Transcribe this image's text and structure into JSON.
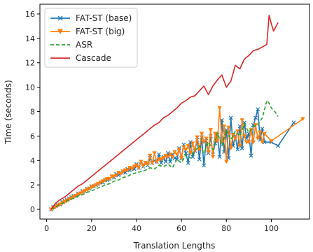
{
  "chart_data": {
    "type": "line",
    "xlabel": "Translation Lengths",
    "ylabel": "Time (seconds)",
    "xlim": [
      -3,
      117
    ],
    "ylim": [
      -0.8,
      16.8
    ],
    "xticks": [
      0,
      20,
      40,
      60,
      80,
      100
    ],
    "yticks": [
      0,
      2,
      4,
      6,
      8,
      10,
      12,
      14,
      16
    ],
    "grid": false,
    "legend_position": "top-left",
    "series": [
      {
        "name": "FAT-ST (base)",
        "color": "#1f77b4",
        "marker": "x",
        "x": [
          2,
          3,
          4,
          5,
          6,
          7,
          8,
          9,
          10,
          11,
          12,
          13,
          14,
          15,
          16,
          17,
          18,
          19,
          20,
          21,
          22,
          23,
          24,
          25,
          26,
          27,
          28,
          29,
          30,
          31,
          32,
          33,
          34,
          35,
          36,
          37,
          38,
          39,
          40,
          41,
          42,
          43,
          44,
          45,
          46,
          47,
          48,
          49,
          50,
          51,
          52,
          53,
          54,
          55,
          56,
          57,
          58,
          59,
          60,
          61,
          62,
          63,
          64,
          65,
          66,
          67,
          68,
          69,
          70,
          71,
          72,
          73,
          74,
          75,
          76,
          77,
          78,
          79,
          80,
          81,
          82,
          83,
          84,
          85,
          86,
          87,
          88,
          89,
          90,
          91,
          92,
          93,
          94,
          95,
          96,
          97,
          100,
          103,
          110
        ],
        "y": [
          0.0,
          0.2,
          0.3,
          0.4,
          0.4,
          0.6,
          0.7,
          0.8,
          0.9,
          1.0,
          1.1,
          1.1,
          1.3,
          1.3,
          1.5,
          1.5,
          1.7,
          1.7,
          1.9,
          1.9,
          2.0,
          2.1,
          2.2,
          2.2,
          2.4,
          2.4,
          2.5,
          2.7,
          2.6,
          2.9,
          2.8,
          3.0,
          3.1,
          3.0,
          3.3,
          3.2,
          3.4,
          3.3,
          3.7,
          3.4,
          3.9,
          3.5,
          3.8,
          3.6,
          4.2,
          3.8,
          4.0,
          3.9,
          4.5,
          3.8,
          4.3,
          3.9,
          4.6,
          3.9,
          4.5,
          4.2,
          4.1,
          5.0,
          4.2,
          5.3,
          4.6,
          3.8,
          5.5,
          4.3,
          4.8,
          5.7,
          4.1,
          5.9,
          3.6,
          5.6,
          4.6,
          6.0,
          4.5,
          5.4,
          6.1,
          4.3,
          7.3,
          4.7,
          6.5,
          4.2,
          7.5,
          5.2,
          6.0,
          4.9,
          6.8,
          5.0,
          7.1,
          5.8,
          6.2,
          4.4,
          6.9,
          7.5,
          8.2,
          5.7,
          6.6,
          5.5,
          5.5,
          5.2,
          7.1
        ]
      },
      {
        "name": "FAT-ST (big)",
        "color": "#ff7f0e",
        "marker": "triangle-down",
        "x": [
          2,
          3,
          4,
          5,
          6,
          7,
          8,
          9,
          10,
          11,
          12,
          13,
          14,
          15,
          16,
          17,
          18,
          19,
          20,
          21,
          22,
          23,
          24,
          25,
          26,
          27,
          28,
          29,
          30,
          31,
          32,
          33,
          34,
          35,
          36,
          37,
          38,
          39,
          40,
          41,
          42,
          43,
          44,
          45,
          46,
          47,
          48,
          49,
          50,
          51,
          52,
          53,
          54,
          55,
          56,
          57,
          58,
          59,
          60,
          61,
          62,
          63,
          64,
          65,
          66,
          67,
          68,
          69,
          70,
          71,
          72,
          73,
          74,
          75,
          76,
          77,
          78,
          79,
          80,
          81,
          82,
          83,
          84,
          85,
          86,
          87,
          88,
          89,
          90,
          91,
          92,
          93,
          94,
          95,
          96,
          97,
          100,
          114
        ],
        "y": [
          0.0,
          0.1,
          0.2,
          0.3,
          0.4,
          0.5,
          0.6,
          0.7,
          0.8,
          0.9,
          1.0,
          1.1,
          1.2,
          1.3,
          1.4,
          1.5,
          1.6,
          1.7,
          1.8,
          1.9,
          2.0,
          2.1,
          2.2,
          2.3,
          2.4,
          2.5,
          2.5,
          2.7,
          2.7,
          2.8,
          3.0,
          2.9,
          3.1,
          3.2,
          3.2,
          3.4,
          3.3,
          3.5,
          3.6,
          3.4,
          3.9,
          3.6,
          3.8,
          3.7,
          4.4,
          3.8,
          4.6,
          3.9,
          4.1,
          4.1,
          4.2,
          4.4,
          4.3,
          4.5,
          4.3,
          4.7,
          4.5,
          4.9,
          4.2,
          5.1,
          4.9,
          5.2,
          4.6,
          5.4,
          4.8,
          5.9,
          4.9,
          6.2,
          5.5,
          5.8,
          4.7,
          6.5,
          4.3,
          6.2,
          5.6,
          8.3,
          5.5,
          6.8,
          3.9,
          6.7,
          5.0,
          6.1,
          5.8,
          6.4,
          5.2,
          7.3,
          6.0,
          5.5,
          5.5,
          6.5,
          5.5,
          6.9,
          5.8,
          6.3,
          5.5,
          6.2,
          5.6,
          7.4
        ]
      },
      {
        "name": "ASR",
        "color": "#2ca02c",
        "dash": "5,3",
        "x": [
          2,
          4,
          6,
          8,
          10,
          12,
          14,
          16,
          18,
          20,
          22,
          24,
          26,
          28,
          30,
          32,
          34,
          36,
          38,
          40,
          42,
          44,
          46,
          48,
          50,
          52,
          54,
          56,
          58,
          60,
          62,
          64,
          66,
          68,
          70,
          72,
          74,
          76,
          78,
          80,
          82,
          84,
          86,
          88,
          90,
          92,
          94,
          96,
          98,
          99,
          100,
          102,
          103
        ],
        "y": [
          0.0,
          0.2,
          0.4,
          0.6,
          0.8,
          0.9,
          1.1,
          1.2,
          1.4,
          1.5,
          1.7,
          1.8,
          2.0,
          2.1,
          2.3,
          2.4,
          2.6,
          2.7,
          2.9,
          3.0,
          3.1,
          3.2,
          3.4,
          3.3,
          3.6,
          3.5,
          3.7,
          3.4,
          4.1,
          3.8,
          4.5,
          4.2,
          4.8,
          5.2,
          4.6,
          5.5,
          4.9,
          6.3,
          5.2,
          6.5,
          5.7,
          6.4,
          6.0,
          7.0,
          6.3,
          6.8,
          6.9,
          7.5,
          8.9,
          8.7,
          8.3,
          7.9,
          7.6
        ]
      },
      {
        "name": "Cascade",
        "color": "#d62728",
        "x": [
          2,
          4,
          6,
          8,
          10,
          12,
          14,
          16,
          18,
          20,
          22,
          24,
          26,
          28,
          30,
          32,
          34,
          36,
          38,
          40,
          42,
          44,
          46,
          48,
          50,
          52,
          54,
          56,
          58,
          60,
          62,
          64,
          66,
          68,
          70,
          72,
          74,
          76,
          78,
          80,
          82,
          84,
          86,
          88,
          90,
          92,
          94,
          96,
          98,
          99,
          100,
          101,
          103
        ],
        "y": [
          0.0,
          0.5,
          0.8,
          1.0,
          1.3,
          1.6,
          1.9,
          2.1,
          2.4,
          2.7,
          3.0,
          3.3,
          3.6,
          3.9,
          4.2,
          4.5,
          4.8,
          5.1,
          5.4,
          5.7,
          6.0,
          6.3,
          6.6,
          6.9,
          7.1,
          7.5,
          7.7,
          8.0,
          8.3,
          8.7,
          8.9,
          9.2,
          9.3,
          9.7,
          10.1,
          9.4,
          10.1,
          10.6,
          11.0,
          10.0,
          10.5,
          11.8,
          11.5,
          12.3,
          12.6,
          13.0,
          13.1,
          13.3,
          13.5,
          15.9,
          15.2,
          14.6,
          15.3
        ]
      }
    ]
  }
}
